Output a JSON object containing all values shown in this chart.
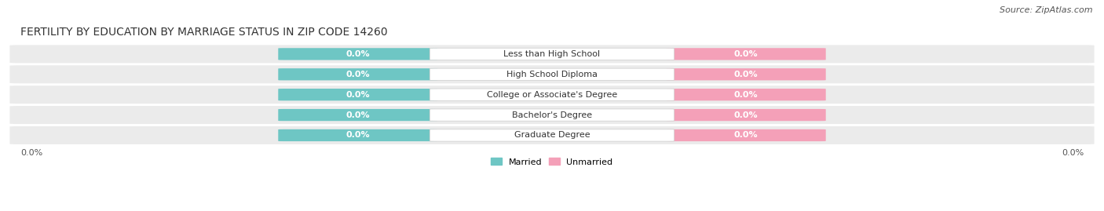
{
  "title": "FERTILITY BY EDUCATION BY MARRIAGE STATUS IN ZIP CODE 14260",
  "source": "Source: ZipAtlas.com",
  "categories": [
    "Less than High School",
    "High School Diploma",
    "College or Associate's Degree",
    "Bachelor's Degree",
    "Graduate Degree"
  ],
  "married_values": [
    0.0,
    0.0,
    0.0,
    0.0,
    0.0
  ],
  "unmarried_values": [
    0.0,
    0.0,
    0.0,
    0.0,
    0.0
  ],
  "married_color": "#6ec6c4",
  "unmarried_color": "#f4a0b8",
  "row_bg_color": "#ebebeb",
  "category_text_color": "#333333",
  "title_color": "#333333",
  "bar_height": 0.65,
  "figsize": [
    14.06,
    2.69
  ],
  "dpi": 100,
  "legend_married": "Married",
  "legend_unmarried": "Unmarried",
  "left_axis_label": "0.0%",
  "right_axis_label": "0.0%",
  "title_fontsize": 10,
  "source_fontsize": 8,
  "label_fontsize": 8,
  "category_fontsize": 8,
  "axis_label_fontsize": 8
}
